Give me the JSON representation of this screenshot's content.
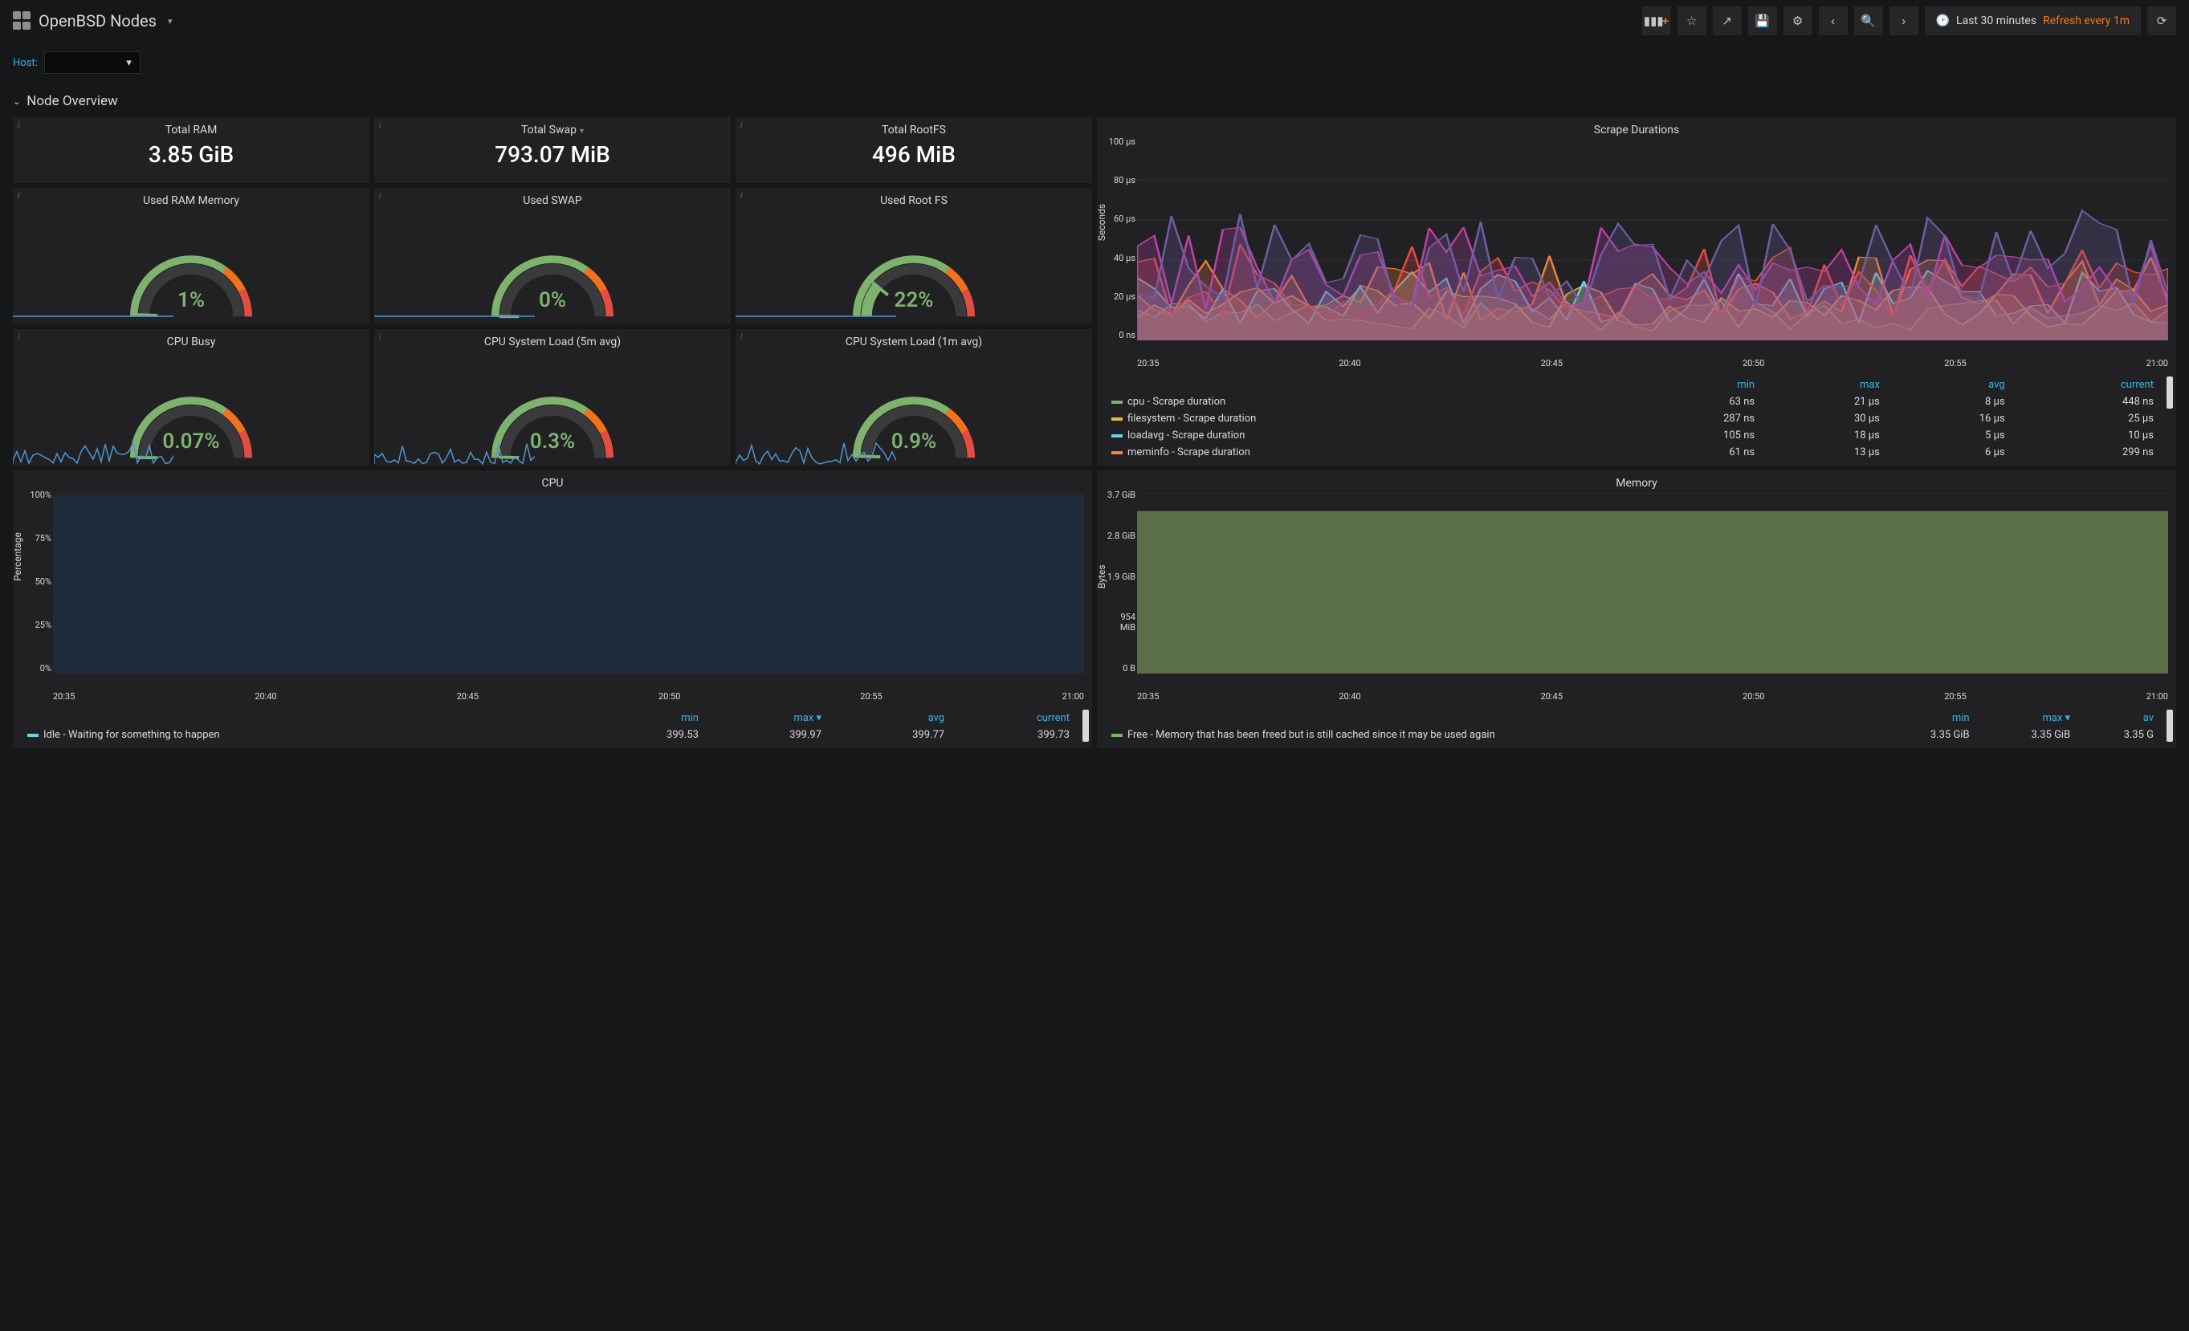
{
  "header": {
    "title": "OpenBSD Nodes",
    "time_range": "Last 30 minutes",
    "refresh": "Refresh every 1m"
  },
  "host": {
    "label": "Host:"
  },
  "section": {
    "title": "Node Overview"
  },
  "stats": {
    "ram": {
      "title": "Total RAM",
      "value": "3.85 GiB"
    },
    "swap": {
      "title": "Total Swap",
      "value": "793.07 MiB"
    },
    "root": {
      "title": "Total RootFS",
      "value": "496 MiB"
    }
  },
  "gauges": {
    "used_ram": {
      "title": "Used RAM Memory",
      "value": "1%",
      "pct": 1
    },
    "used_swap": {
      "title": "Used SWAP",
      "value": "0%",
      "pct": 0
    },
    "used_root": {
      "title": "Used Root FS",
      "value": "22%",
      "pct": 22
    },
    "cpu_busy": {
      "title": "CPU Busy",
      "value": "0.07%",
      "pct": 0.07
    },
    "load5": {
      "title": "CPU System Load (5m avg)",
      "value": "0.3%",
      "pct": 0.3
    },
    "load1": {
      "title": "CPU System Load (1m avg)",
      "value": "0.9%",
      "pct": 0.9
    },
    "colors": {
      "green": "#7eb26d",
      "orange": "#f2711c",
      "red": "#e24d42",
      "track": "#3a3a3d"
    }
  },
  "scrape": {
    "title": "Scrape Durations",
    "y_label": "Seconds",
    "y_ticks": [
      "100 µs",
      "80 µs",
      "60 µs",
      "40 µs",
      "20 µs",
      "0 ns"
    ],
    "x_ticks": [
      "20:35",
      "20:40",
      "20:45",
      "20:50",
      "20:55",
      "21:00"
    ],
    "columns": [
      "",
      "min",
      "max",
      "avg",
      "current"
    ],
    "rows": [
      {
        "swatch": "#7eb26d",
        "name": "cpu - Scrape duration",
        "min": "63 ns",
        "max": "21 µs",
        "avg": "8 µs",
        "cur": "448 ns"
      },
      {
        "swatch": "#eab839",
        "name": "filesystem - Scrape duration",
        "min": "287 ns",
        "max": "30 µs",
        "avg": "16 µs",
        "cur": "25 µs"
      },
      {
        "swatch": "#6ed0e0",
        "name": "loadavg - Scrape duration",
        "min": "105 ns",
        "max": "18 µs",
        "avg": "5 µs",
        "cur": "10 µs"
      },
      {
        "swatch": "#ef843c",
        "name": "meminfo - Scrape duration",
        "min": "61 ns",
        "max": "13 µs",
        "avg": "6 µs",
        "cur": "299 ns"
      }
    ],
    "chart_colors": [
      "#7eb26d",
      "#eab839",
      "#6ed0e0",
      "#ef843c",
      "#e24d42",
      "#ba43a9",
      "#705da0",
      "#508642"
    ]
  },
  "cpu_chart": {
    "title": "CPU",
    "y_label": "Percentage",
    "y_ticks": [
      "100%",
      "75%",
      "50%",
      "25%",
      "0%"
    ],
    "x_ticks": [
      "20:35",
      "20:40",
      "20:45",
      "20:50",
      "20:55",
      "21:00"
    ],
    "columns": [
      "",
      "min",
      "max ▾",
      "avg",
      "current"
    ],
    "rows": [
      {
        "swatch": "#6ed0e0",
        "name": "Idle - Waiting for something to happen",
        "min": "399.53",
        "max": "399.97",
        "avg": "399.77",
        "cur": "399.73"
      }
    ],
    "fill_color": "#1f2a3a"
  },
  "mem_chart": {
    "title": "Memory",
    "y_label": "Bytes",
    "y_ticks": [
      "3.7 GiB",
      "2.8 GiB",
      "1.9 GiB",
      "954 MiB",
      "0 B"
    ],
    "x_ticks": [
      "20:35",
      "20:40",
      "20:45",
      "20:50",
      "20:55",
      "21:00"
    ],
    "columns": [
      "",
      "min",
      "max ▾",
      "av"
    ],
    "rows": [
      {
        "swatch": "#7eb26d",
        "name": "Free - Memory that has been freed but is still cached since it may be used again",
        "min": "3.35 GiB",
        "max": "3.35 GiB",
        "cur": "3.35 G"
      }
    ],
    "fill_color": "#5a6e4a"
  }
}
